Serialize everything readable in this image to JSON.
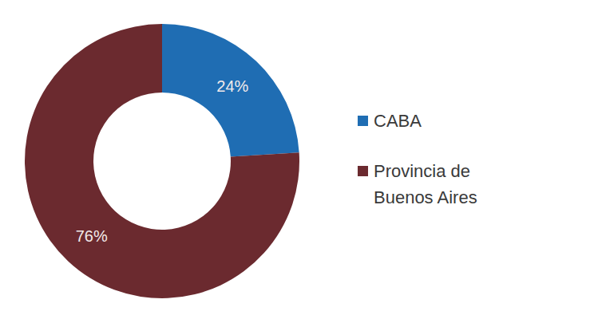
{
  "chart_data": {
    "type": "pie",
    "categories": [
      "CABA",
      "Provincia de Buenos Aires"
    ],
    "values": [
      24,
      76
    ],
    "value_labels": [
      "24%",
      "76%"
    ],
    "colors": [
      "#1f6db3",
      "#6b2a2f"
    ],
    "data_labels": true,
    "legend": "right"
  }
}
